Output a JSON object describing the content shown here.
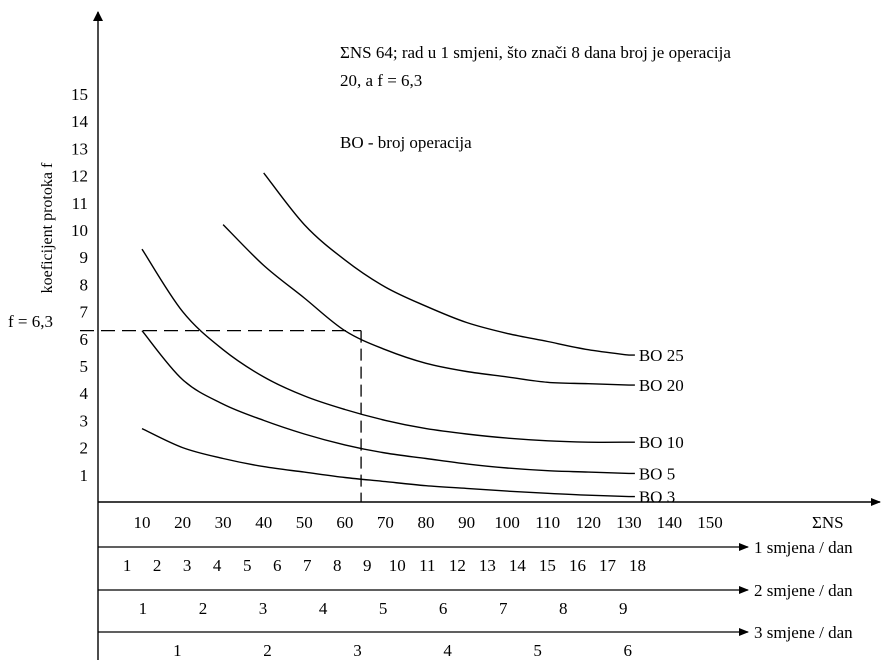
{
  "chart_data": {
    "type": "line",
    "ylabel": "koeficijent protoka f",
    "xlabel": "ΣNS",
    "y_ticks": [
      "1",
      "2",
      "3",
      "4",
      "5",
      "6",
      "7",
      "8",
      "9",
      "10",
      "11",
      "12",
      "13",
      "14",
      "15"
    ],
    "x_ticks": [
      "10",
      "20",
      "30",
      "40",
      "50",
      "60",
      "70",
      "80",
      "90",
      "100",
      "110",
      "120",
      "130",
      "140",
      "150"
    ],
    "ylim": [
      0,
      16
    ],
    "xlim": [
      0,
      160
    ],
    "grid": false,
    "series": [
      {
        "name": "BO 25",
        "x": [
          40,
          50,
          60,
          70,
          80,
          90,
          100,
          110,
          120,
          130
        ],
        "y": [
          12.1,
          10.2,
          8.9,
          7.9,
          7.2,
          6.6,
          6.2,
          5.9,
          5.6,
          5.4
        ]
      },
      {
        "name": "BO 20",
        "x": [
          30,
          40,
          50,
          60,
          70,
          80,
          90,
          100,
          110,
          120,
          130
        ],
        "y": [
          10.2,
          8.7,
          7.5,
          6.3,
          5.6,
          5.1,
          4.8,
          4.6,
          4.4,
          4.35,
          4.3
        ]
      },
      {
        "name": "BO 10",
        "x": [
          10,
          20,
          30,
          40,
          50,
          60,
          70,
          80,
          90,
          100,
          110,
          120,
          130
        ],
        "y": [
          9.3,
          7.0,
          5.6,
          4.6,
          3.9,
          3.4,
          3.0,
          2.7,
          2.5,
          2.35,
          2.25,
          2.2,
          2.2
        ]
      },
      {
        "name": "BO 5",
        "x": [
          10,
          20,
          30,
          40,
          50,
          60,
          70,
          80,
          90,
          100,
          110,
          120,
          130
        ],
        "y": [
          6.3,
          4.5,
          3.6,
          3.0,
          2.5,
          2.1,
          1.8,
          1.6,
          1.4,
          1.25,
          1.15,
          1.1,
          1.05
        ]
      },
      {
        "name": "BO 3",
        "x": [
          10,
          20,
          30,
          40,
          50,
          60,
          70,
          80,
          90,
          100,
          110,
          120,
          130
        ],
        "y": [
          2.7,
          2.0,
          1.6,
          1.3,
          1.1,
          0.9,
          0.75,
          0.6,
          0.5,
          0.4,
          0.32,
          0.25,
          0.2
        ]
      }
    ],
    "marker": {
      "label": "f = 6,3",
      "x": 64,
      "y": 6.3
    },
    "annotation": {
      "line1": "ΣNS 64; rad u 1 smjeni, što znači 8 dana broj je operacija",
      "line2": "20, a f = 6,3",
      "line3": "BO - broj operacija"
    },
    "secondary_axes": [
      {
        "label": "1 smjena / dan",
        "ticks": [
          "1",
          "2",
          "3",
          "4",
          "5",
          "6",
          "7",
          "8",
          "9",
          "10",
          "11",
          "12",
          "13",
          "14",
          "15",
          "16",
          "17",
          "18"
        ]
      },
      {
        "label": "2 smjene / dan",
        "ticks": [
          "1",
          "2",
          "3",
          "4",
          "5",
          "6",
          "7",
          "8",
          "9"
        ]
      },
      {
        "label": "3 smjene / dan",
        "ticks": [
          "1",
          "2",
          "3",
          "4",
          "5",
          "6"
        ]
      }
    ]
  }
}
